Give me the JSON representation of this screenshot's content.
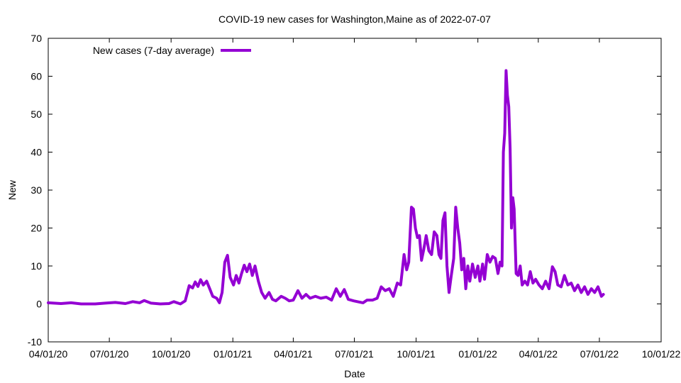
{
  "chart_data": {
    "type": "line",
    "title": "COVID-19 new cases for Washington,Maine as of 2022-07-07",
    "xlabel": "Date",
    "ylabel": "New",
    "xlim": [
      "2020-04-01",
      "2022-10-01"
    ],
    "ylim": [
      -10,
      70
    ],
    "x_ticks": [
      {
        "date": "2020-04-01",
        "label": "04/01/20"
      },
      {
        "date": "2020-07-01",
        "label": "07/01/20"
      },
      {
        "date": "2020-10-01",
        "label": "10/01/20"
      },
      {
        "date": "2021-01-01",
        "label": "01/01/21"
      },
      {
        "date": "2021-04-01",
        "label": "04/01/21"
      },
      {
        "date": "2021-07-01",
        "label": "07/01/21"
      },
      {
        "date": "2021-10-01",
        "label": "10/01/21"
      },
      {
        "date": "2022-01-01",
        "label": "01/01/22"
      },
      {
        "date": "2022-04-01",
        "label": "04/01/22"
      },
      {
        "date": "2022-07-01",
        "label": "07/01/22"
      },
      {
        "date": "2022-10-01",
        "label": "10/01/22"
      }
    ],
    "y_ticks": [
      -10,
      0,
      10,
      20,
      30,
      40,
      50,
      60,
      70
    ],
    "grid": false,
    "legend": {
      "position": "top-left"
    },
    "colors": {
      "series": "#9400d3",
      "axes": "#000000"
    },
    "series": [
      {
        "name": "New cases (7-day average)",
        "points": [
          [
            "2020-04-01",
            0.3
          ],
          [
            "2020-04-20",
            0.1
          ],
          [
            "2020-05-05",
            0.3
          ],
          [
            "2020-05-20",
            0.0
          ],
          [
            "2020-06-10",
            0.0
          ],
          [
            "2020-06-25",
            0.2
          ],
          [
            "2020-07-10",
            0.4
          ],
          [
            "2020-07-25",
            0.1
          ],
          [
            "2020-08-05",
            0.6
          ],
          [
            "2020-08-15",
            0.3
          ],
          [
            "2020-08-22",
            0.9
          ],
          [
            "2020-09-01",
            0.2
          ],
          [
            "2020-09-15",
            0.0
          ],
          [
            "2020-09-28",
            0.1
          ],
          [
            "2020-10-05",
            0.6
          ],
          [
            "2020-10-15",
            0.0
          ],
          [
            "2020-10-22",
            0.8
          ],
          [
            "2020-10-28",
            4.8
          ],
          [
            "2020-11-02",
            4.2
          ],
          [
            "2020-11-06",
            5.8
          ],
          [
            "2020-11-10",
            4.6
          ],
          [
            "2020-11-14",
            6.4
          ],
          [
            "2020-11-18",
            5.0
          ],
          [
            "2020-11-23",
            6.0
          ],
          [
            "2020-11-28",
            3.8
          ],
          [
            "2020-12-02",
            2.0
          ],
          [
            "2020-12-08",
            1.5
          ],
          [
            "2020-12-12",
            0.3
          ],
          [
            "2020-12-16",
            3.0
          ],
          [
            "2020-12-20",
            11.0
          ],
          [
            "2020-12-24",
            12.8
          ],
          [
            "2020-12-28",
            7.0
          ],
          [
            "2021-01-02",
            5.0
          ],
          [
            "2021-01-06",
            7.5
          ],
          [
            "2021-01-10",
            5.5
          ],
          [
            "2021-01-14",
            8.0
          ],
          [
            "2021-01-18",
            10.2
          ],
          [
            "2021-01-22",
            8.5
          ],
          [
            "2021-01-26",
            10.5
          ],
          [
            "2021-01-30",
            7.5
          ],
          [
            "2021-02-03",
            10.0
          ],
          [
            "2021-02-08",
            6.0
          ],
          [
            "2021-02-13",
            3.0
          ],
          [
            "2021-02-18",
            1.5
          ],
          [
            "2021-02-24",
            3.0
          ],
          [
            "2021-03-01",
            1.2
          ],
          [
            "2021-03-06",
            0.8
          ],
          [
            "2021-03-14",
            2.0
          ],
          [
            "2021-03-20",
            1.5
          ],
          [
            "2021-03-26",
            0.8
          ],
          [
            "2021-04-01",
            1.0
          ],
          [
            "2021-04-08",
            3.5
          ],
          [
            "2021-04-14",
            1.5
          ],
          [
            "2021-04-20",
            2.5
          ],
          [
            "2021-04-26",
            1.5
          ],
          [
            "2021-05-04",
            2.0
          ],
          [
            "2021-05-12",
            1.5
          ],
          [
            "2021-05-20",
            1.8
          ],
          [
            "2021-05-28",
            1.0
          ],
          [
            "2021-06-04",
            4.0
          ],
          [
            "2021-06-10",
            2.0
          ],
          [
            "2021-06-16",
            3.8
          ],
          [
            "2021-06-22",
            1.2
          ],
          [
            "2021-06-30",
            0.8
          ],
          [
            "2021-07-08",
            0.5
          ],
          [
            "2021-07-14",
            0.3
          ],
          [
            "2021-07-20",
            1.0
          ],
          [
            "2021-07-28",
            1.0
          ],
          [
            "2021-08-04",
            1.5
          ],
          [
            "2021-08-10",
            4.5
          ],
          [
            "2021-08-16",
            3.5
          ],
          [
            "2021-08-22",
            4.0
          ],
          [
            "2021-08-28",
            2.0
          ],
          [
            "2021-09-03",
            5.5
          ],
          [
            "2021-09-08",
            5.0
          ],
          [
            "2021-09-13",
            13.0
          ],
          [
            "2021-09-17",
            9.0
          ],
          [
            "2021-09-20",
            11.0
          ],
          [
            "2021-09-24",
            25.5
          ],
          [
            "2021-09-27",
            25.0
          ],
          [
            "2021-09-30",
            20.0
          ],
          [
            "2021-10-03",
            17.5
          ],
          [
            "2021-10-06",
            18.0
          ],
          [
            "2021-10-09",
            11.5
          ],
          [
            "2021-10-12",
            14.0
          ],
          [
            "2021-10-16",
            18.0
          ],
          [
            "2021-10-20",
            14.0
          ],
          [
            "2021-10-24",
            13.0
          ],
          [
            "2021-10-28",
            19.0
          ],
          [
            "2021-11-01",
            18.0
          ],
          [
            "2021-11-04",
            13.0
          ],
          [
            "2021-11-07",
            12.0
          ],
          [
            "2021-11-10",
            22.0
          ],
          [
            "2021-11-13",
            24.0
          ],
          [
            "2021-11-16",
            10.0
          ],
          [
            "2021-11-19",
            3.0
          ],
          [
            "2021-11-22",
            7.0
          ],
          [
            "2021-11-26",
            12.0
          ],
          [
            "2021-11-29",
            25.5
          ],
          [
            "2021-12-02",
            20.0
          ],
          [
            "2021-12-05",
            16.0
          ],
          [
            "2021-12-08",
            9.0
          ],
          [
            "2021-12-11",
            12.0
          ],
          [
            "2021-12-14",
            4.0
          ],
          [
            "2021-12-17",
            10.0
          ],
          [
            "2021-12-20",
            6.0
          ],
          [
            "2021-12-24",
            10.5
          ],
          [
            "2021-12-28",
            7.0
          ],
          [
            "2022-01-01",
            10.0
          ],
          [
            "2022-01-04",
            6.0
          ],
          [
            "2022-01-08",
            10.5
          ],
          [
            "2022-01-11",
            6.5
          ],
          [
            "2022-01-15",
            13.0
          ],
          [
            "2022-01-19",
            11.0
          ],
          [
            "2022-01-23",
            12.5
          ],
          [
            "2022-01-27",
            12.0
          ],
          [
            "2022-01-31",
            8.0
          ],
          [
            "2022-02-03",
            11.0
          ],
          [
            "2022-02-06",
            10.0
          ],
          [
            "2022-02-08",
            40.0
          ],
          [
            "2022-02-10",
            45.0
          ],
          [
            "2022-02-12",
            61.5
          ],
          [
            "2022-02-14",
            55.0
          ],
          [
            "2022-02-16",
            52.0
          ],
          [
            "2022-02-18",
            41.0
          ],
          [
            "2022-02-20",
            20.0
          ],
          [
            "2022-02-22",
            28.0
          ],
          [
            "2022-02-24",
            25.0
          ],
          [
            "2022-02-27",
            8.0
          ],
          [
            "2022-03-02",
            7.5
          ],
          [
            "2022-03-05",
            10.0
          ],
          [
            "2022-03-08",
            5.0
          ],
          [
            "2022-03-12",
            6.0
          ],
          [
            "2022-03-16",
            5.0
          ],
          [
            "2022-03-20",
            8.5
          ],
          [
            "2022-03-24",
            5.5
          ],
          [
            "2022-03-28",
            6.5
          ],
          [
            "2022-04-02",
            5.0
          ],
          [
            "2022-04-07",
            4.0
          ],
          [
            "2022-04-12",
            6.0
          ],
          [
            "2022-04-17",
            4.0
          ],
          [
            "2022-04-22",
            9.8
          ],
          [
            "2022-04-26",
            8.5
          ],
          [
            "2022-04-30",
            5.0
          ],
          [
            "2022-05-05",
            4.5
          ],
          [
            "2022-05-10",
            7.5
          ],
          [
            "2022-05-15",
            5.0
          ],
          [
            "2022-05-20",
            5.5
          ],
          [
            "2022-05-25",
            3.5
          ],
          [
            "2022-05-30",
            5.0
          ],
          [
            "2022-06-04",
            3.0
          ],
          [
            "2022-06-09",
            4.5
          ],
          [
            "2022-06-14",
            2.5
          ],
          [
            "2022-06-19",
            4.0
          ],
          [
            "2022-06-24",
            3.0
          ],
          [
            "2022-06-29",
            4.5
          ],
          [
            "2022-07-02",
            3.0
          ],
          [
            "2022-07-04",
            2.0
          ],
          [
            "2022-07-07",
            2.5
          ]
        ]
      }
    ]
  }
}
